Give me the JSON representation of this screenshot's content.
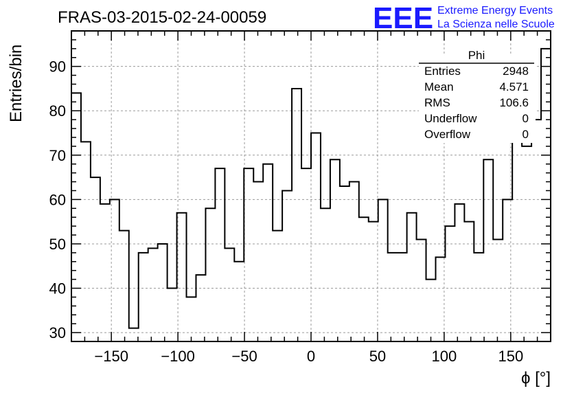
{
  "header": {
    "title": "FRAS-03-2015-02-24-00059",
    "logo_text": "EEE",
    "logo_line1": "Extreme Energy Events",
    "logo_line2": "La Scienza nelle Scuole"
  },
  "stats_box": {
    "name": "Phi",
    "rows": [
      {
        "label": "Entries",
        "value": "2948"
      },
      {
        "label": "Mean",
        "value": "4.571"
      },
      {
        "label": "RMS",
        "value": "106.6"
      },
      {
        "label": "Underflow",
        "value": "0"
      },
      {
        "label": "Overflow",
        "value": "0"
      }
    ]
  },
  "chart_data": {
    "type": "bar",
    "style": "step-histogram",
    "title": "FRAS-03-2015-02-24-00059",
    "xlabel": "ϕ [°]",
    "ylabel": "Entries/bin",
    "xlim": [
      -180,
      180
    ],
    "ylim": [
      28,
      98
    ],
    "bin_width": 7.2,
    "grid": true,
    "x_ticks": [
      -150,
      -100,
      -50,
      0,
      50,
      100,
      150
    ],
    "x_tick_labels": [
      "−150",
      "−100",
      "−50",
      "0",
      "50",
      "100",
      "150"
    ],
    "y_ticks": [
      30,
      40,
      50,
      60,
      70,
      80,
      90
    ],
    "values": [
      84,
      73,
      65,
      59,
      60,
      53,
      31,
      48,
      49,
      50,
      40,
      57,
      38,
      43,
      58,
      67,
      49,
      46,
      67,
      64,
      68,
      53,
      62,
      85,
      67,
      75,
      58,
      69,
      63,
      64,
      56,
      55,
      60,
      48,
      48,
      57,
      51,
      42,
      47,
      54,
      59,
      55,
      48,
      69,
      51,
      60,
      79,
      72,
      78,
      94
    ],
    "line_color": "#000000"
  }
}
